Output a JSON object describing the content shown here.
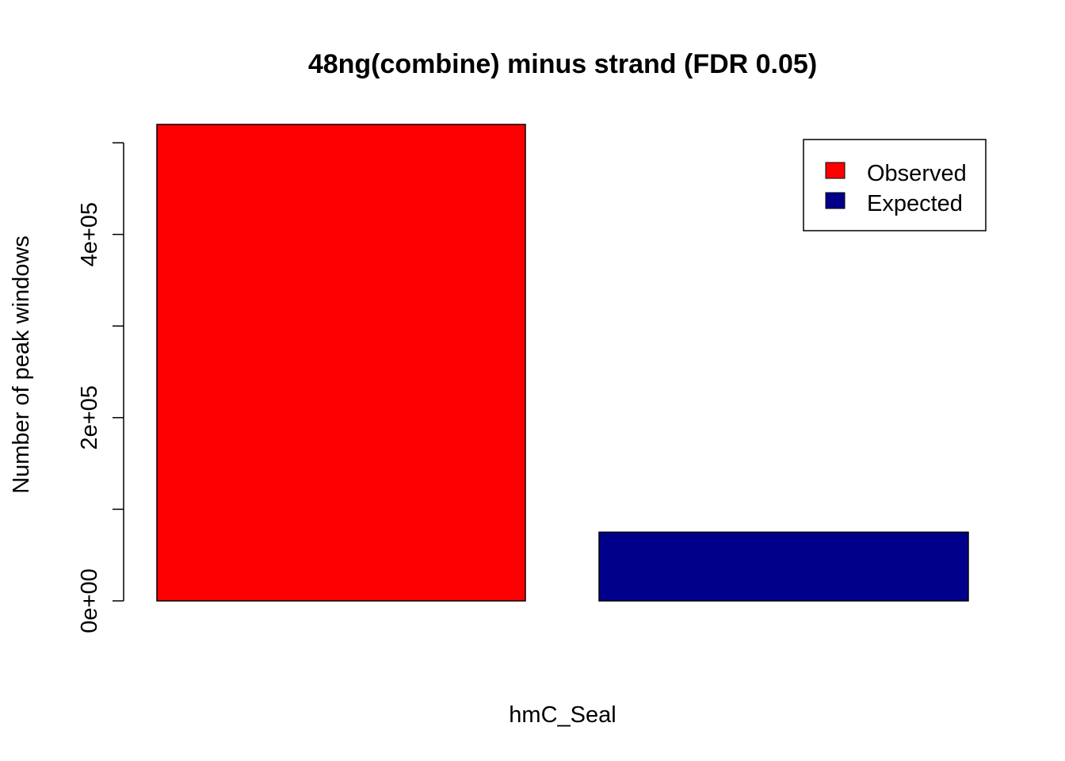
{
  "chart_data": {
    "type": "bar",
    "title": "48ng(combine)  minus strand (FDR 0.05)",
    "xlabel": "hmC_Seal",
    "ylabel": "Number of peak windows",
    "series": [
      {
        "name": "Observed",
        "values": [
          520000
        ],
        "color": "#FF0000"
      },
      {
        "name": "Expected",
        "values": [
          75000
        ],
        "color": "#00008B"
      }
    ],
    "y_ticks": [
      0,
      100000,
      200000,
      300000,
      400000,
      500000
    ],
    "y_tick_labels": [
      "0e+00",
      "",
      "2e+05",
      "",
      "4e+05",
      ""
    ],
    "ylim": [
      0,
      520000
    ],
    "legend_position": "top-right",
    "grid": false
  }
}
